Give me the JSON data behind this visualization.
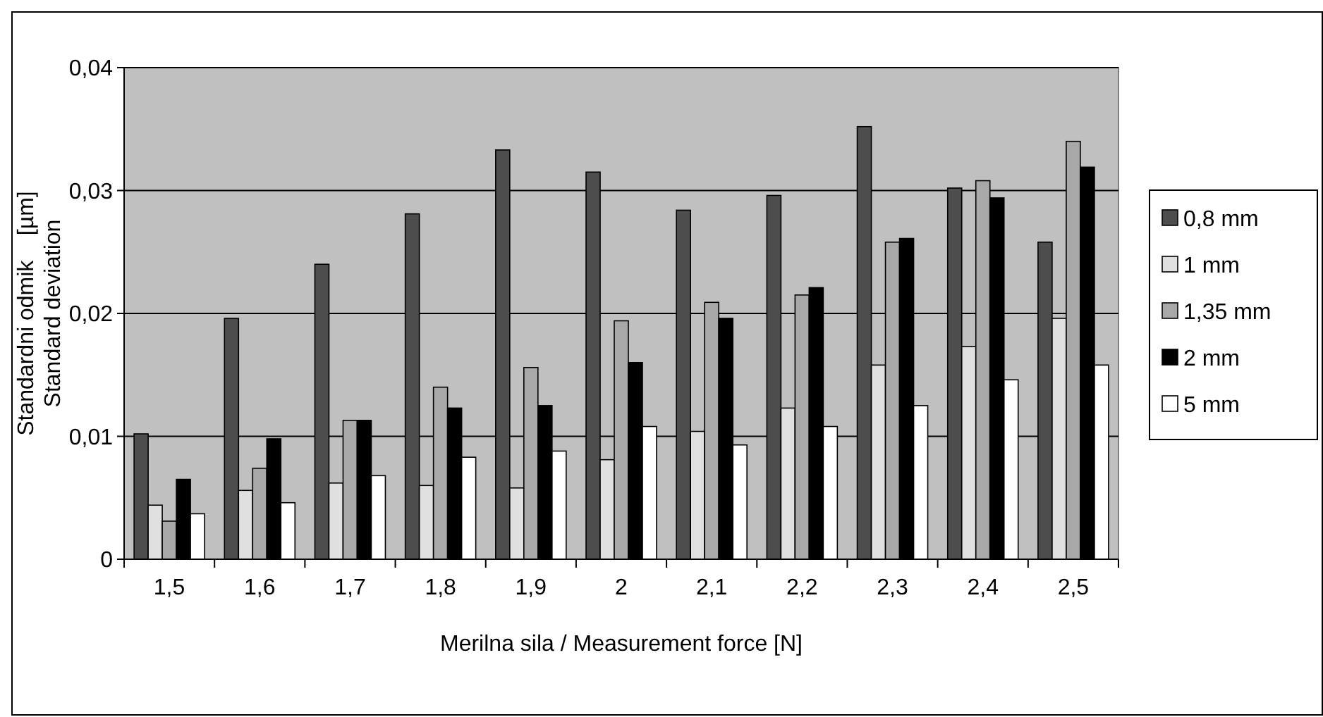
{
  "chart_data": {
    "type": "bar",
    "xlabel": "Merilna sila / Measurement force [N]",
    "ylabel": "Standardni odmik    [µm]\nStandard deviation",
    "categories": [
      "1,5",
      "1,6",
      "1,7",
      "1,8",
      "1,9",
      "2",
      "2,1",
      "2,2",
      "2,3",
      "2,4",
      "2,5"
    ],
    "series": [
      {
        "name": "0,8 mm",
        "color": "#4d4d4d",
        "values": [
          0.0102,
          0.0196,
          0.024,
          0.0281,
          0.0333,
          0.0315,
          0.0284,
          0.0296,
          0.0352,
          0.0302,
          0.0258
        ]
      },
      {
        "name": "1 mm",
        "color": "#e0e0e0",
        "values": [
          0.0044,
          0.0056,
          0.0062,
          0.006,
          0.0058,
          0.0081,
          0.0104,
          0.0123,
          0.0158,
          0.0173,
          0.0196
        ]
      },
      {
        "name": "1,35 mm",
        "color": "#a8a8a8",
        "values": [
          0.0031,
          0.0074,
          0.0113,
          0.014,
          0.0156,
          0.0194,
          0.0209,
          0.0215,
          0.0258,
          0.0308,
          0.034
        ]
      },
      {
        "name": "2 mm",
        "color": "#000000",
        "values": [
          0.0065,
          0.0098,
          0.0113,
          0.0123,
          0.0125,
          0.016,
          0.0196,
          0.0221,
          0.0261,
          0.0294,
          0.0319
        ]
      },
      {
        "name": "5 mm",
        "color": "#ffffff",
        "values": [
          0.0037,
          0.0046,
          0.0068,
          0.0083,
          0.0088,
          0.0108,
          0.0093,
          0.0108,
          0.0125,
          0.0146,
          0.0158
        ]
      }
    ],
    "ylim": [
      0,
      0.04
    ],
    "yticks": [
      {
        "value": 0,
        "label": "0"
      },
      {
        "value": 0.01,
        "label": "0,01"
      },
      {
        "value": 0.02,
        "label": "0,02"
      },
      {
        "value": 0.03,
        "label": "0,03"
      },
      {
        "value": 0.04,
        "label": "0,04"
      }
    ],
    "grid": "y",
    "legend": "right"
  }
}
